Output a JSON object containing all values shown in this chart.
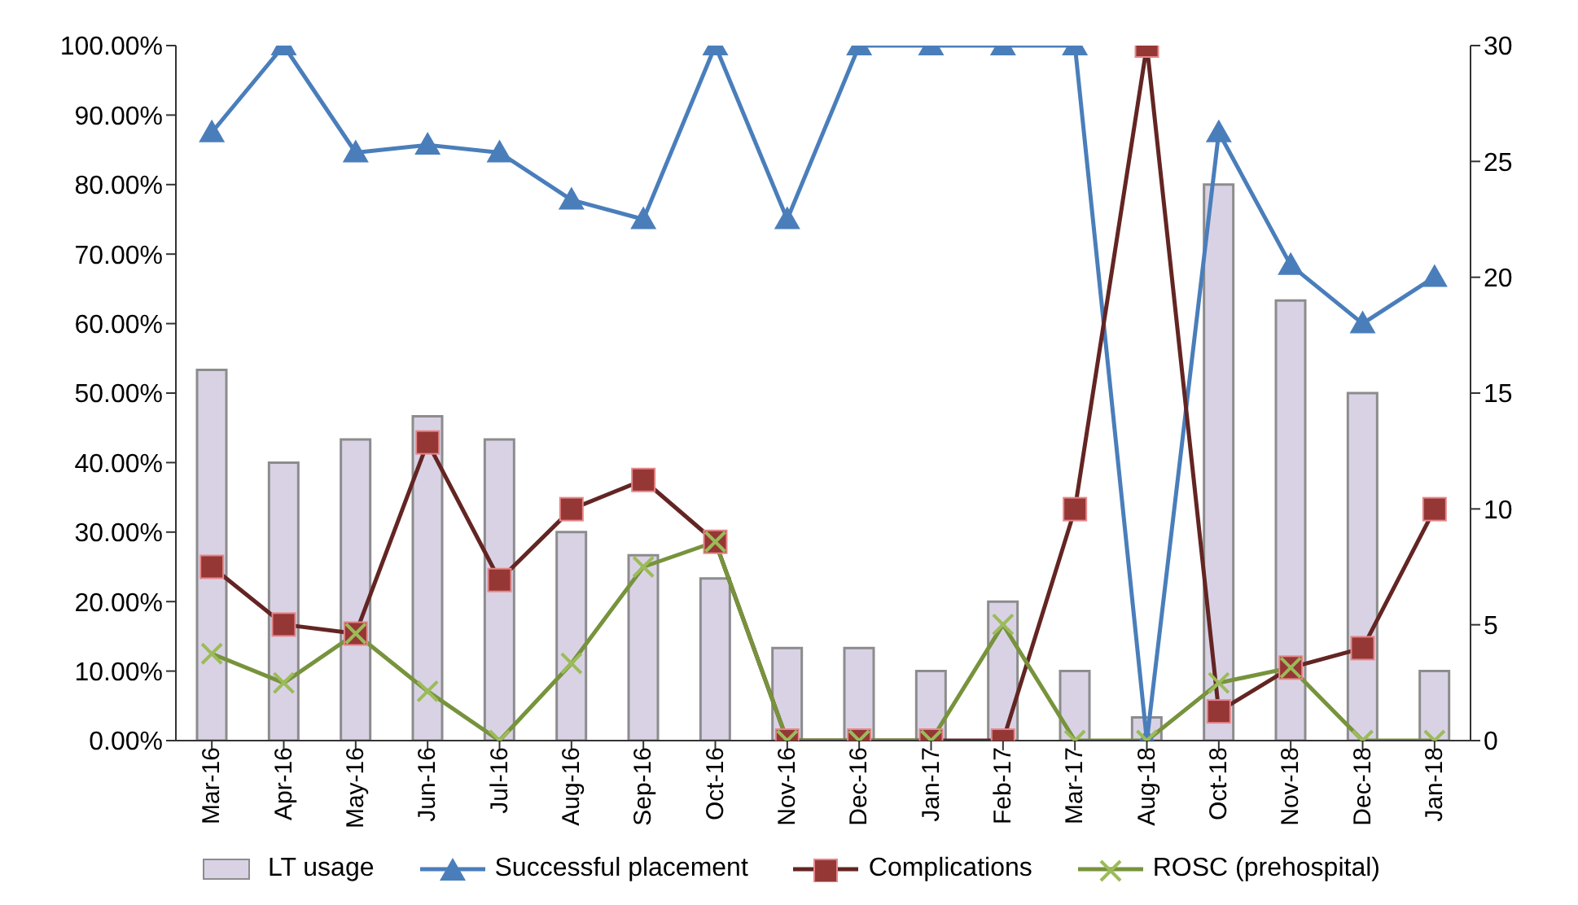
{
  "chart_data": {
    "type": "bar",
    "categories": [
      "Mar-16",
      "Apr-16",
      "May-16",
      "Jun-16",
      "Jul-16",
      "Aug-16",
      "Sep-16",
      "Oct-16",
      "Nov-16",
      "Dec-16",
      "Jan-17",
      "Feb-17",
      "Mar-17",
      "Aug-18",
      "Oct-18",
      "Nov-18",
      "Dec-18",
      "Jan-18"
    ],
    "series": [
      {
        "name": "LT usage",
        "axis": "y2",
        "color": "#d9d2e5",
        "values": [
          16,
          12,
          13,
          14,
          13,
          9,
          8,
          7,
          4,
          4,
          3,
          6,
          3,
          1,
          24,
          19,
          15,
          3
        ]
      },
      {
        "name": "Successful placement",
        "type": "line",
        "marker": "triangle",
        "color": "#4a7ebb",
        "values": [
          87.5,
          100,
          84.6,
          85.7,
          84.6,
          77.8,
          75,
          100,
          75,
          100,
          100,
          100,
          100,
          0,
          87.5,
          68.4,
          60,
          66.7
        ]
      },
      {
        "name": "Complications",
        "type": "line",
        "marker": "square",
        "color": "#632523",
        "values": [
          25,
          16.7,
          15.4,
          42.9,
          23.1,
          33.3,
          37.5,
          28.6,
          0,
          0,
          0,
          0,
          33.3,
          100,
          4.2,
          10.5,
          13.3,
          33.3
        ]
      },
      {
        "name": "ROSC (prehospital)",
        "type": "line",
        "marker": "cross",
        "color": "#77933c",
        "values": [
          12.5,
          8.3,
          15.4,
          7.1,
          0,
          11.1,
          25,
          28.6,
          0,
          0,
          0,
          16.7,
          0,
          0,
          8.3,
          10.5,
          0,
          0
        ]
      }
    ],
    "ylim": [
      0,
      100
    ],
    "yticks": [
      {
        "value": 0,
        "label": "0.00%"
      },
      {
        "value": 10,
        "label": "10.00%"
      },
      {
        "value": 20,
        "label": "20.00%"
      },
      {
        "value": 30,
        "label": "30.00%"
      },
      {
        "value": 40,
        "label": "40.00%"
      },
      {
        "value": 50,
        "label": "50.00%"
      },
      {
        "value": 60,
        "label": "60.00%"
      },
      {
        "value": 70,
        "label": "70.00%"
      },
      {
        "value": 80,
        "label": "80.00%"
      },
      {
        "value": 90,
        "label": "90.00%"
      },
      {
        "value": 100,
        "label": "100.00%"
      }
    ],
    "y2lim": [
      0,
      30
    ],
    "y2ticks": [
      0,
      5,
      10,
      15,
      20,
      25,
      30
    ],
    "grid": false,
    "legend": "bottom"
  }
}
